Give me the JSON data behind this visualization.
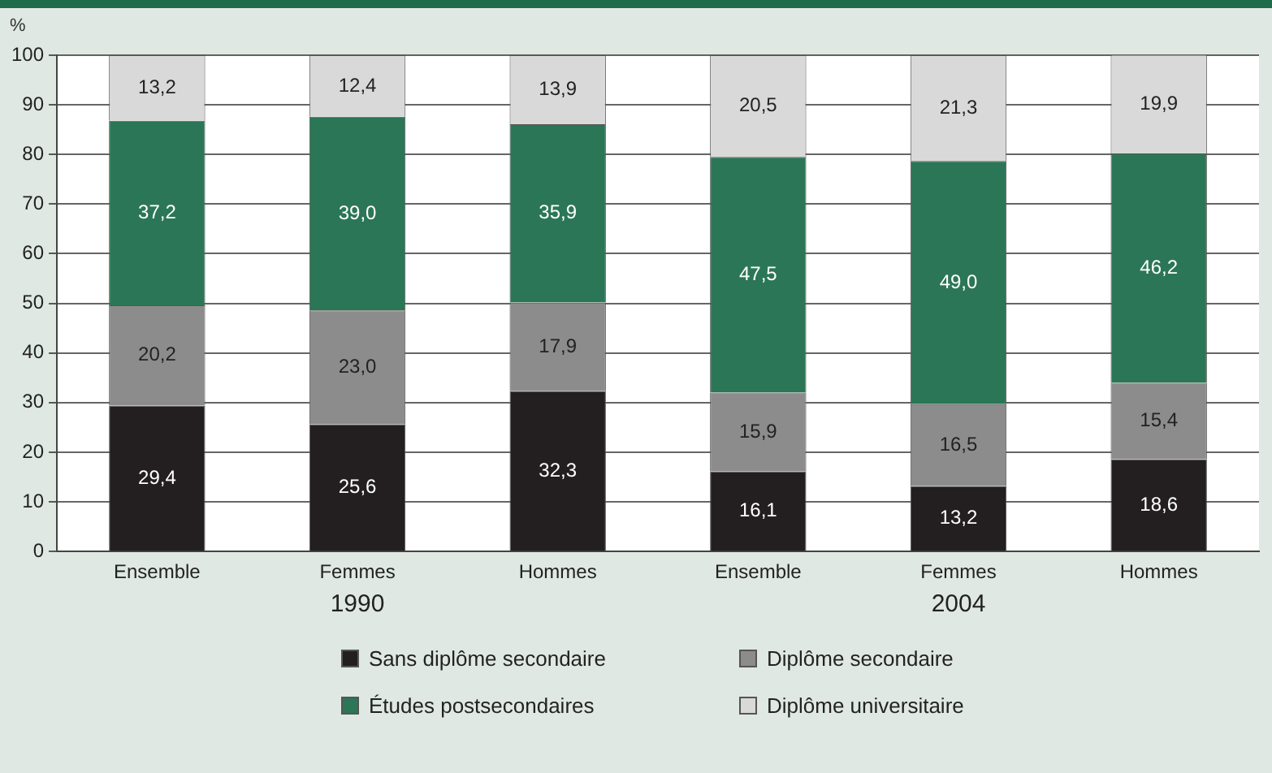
{
  "chart_data": {
    "type": "bar",
    "stacked": true,
    "ylabel": "%",
    "categories": [
      "Ensemble",
      "Femmes",
      "Hommes",
      "Ensemble",
      "Femmes",
      "Hommes"
    ],
    "annotations": [
      "1990",
      "2004"
    ],
    "ylim": [
      0,
      100
    ],
    "yticks": [
      0,
      10,
      20,
      30,
      40,
      50,
      60,
      70,
      80,
      90,
      100
    ],
    "grid": "y",
    "legend": "bottom",
    "series": [
      {
        "name": "Sans diplôme secondaire",
        "color": "#231f20",
        "values": [
          29.4,
          25.6,
          32.3,
          16.1,
          13.2,
          18.6
        ],
        "value_labels": [
          "29,4",
          "25,6",
          "32,3",
          "16,1",
          "13,2",
          "18,6"
        ]
      },
      {
        "name": "Diplôme secondaire",
        "color": "#8c8c8c",
        "values": [
          20.2,
          23.0,
          17.9,
          15.9,
          16.5,
          15.4
        ],
        "value_labels": [
          "20,2",
          "23,0",
          "17,9",
          "15,9",
          "16,5",
          "15,4"
        ]
      },
      {
        "name": "Études postsecondaires",
        "color": "#2b7656",
        "values": [
          37.2,
          39.0,
          35.9,
          47.5,
          49.0,
          46.2
        ],
        "value_labels": [
          "37,2",
          "39,0",
          "35,9",
          "47,5",
          "49,0",
          "46,2"
        ]
      },
      {
        "name": "Diplôme universitaire",
        "color": "#d9d9d9",
        "values": [
          13.2,
          12.4,
          13.9,
          20.5,
          21.3,
          19.9
        ],
        "value_labels": [
          "13,2",
          "12,4",
          "13,9",
          "20,5",
          "21,3",
          "19,9"
        ]
      }
    ]
  }
}
